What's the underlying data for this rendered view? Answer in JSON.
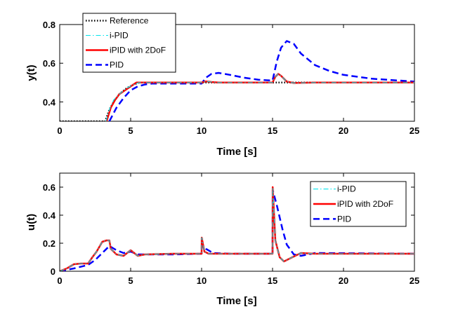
{
  "chart_data": [
    {
      "type": "line",
      "xlabel": "Time [s]",
      "ylabel": "y(t)",
      "xlim": [
        0,
        25
      ],
      "ylim": [
        0.3,
        0.8
      ],
      "xticks": [
        "0",
        "5",
        "10",
        "15",
        "20",
        "25"
      ],
      "yticks": [
        "0.4",
        "0.6",
        "0.8"
      ],
      "legend_position": "top-left",
      "series": [
        {
          "name": "Reference",
          "color": "#000000",
          "style": "dotted",
          "x": [
            0,
            3.2,
            3.5,
            3.8,
            4.2,
            4.7,
            5.2,
            5.6,
            6,
            8,
            10,
            12,
            15,
            15.3,
            15.6,
            16,
            16.5,
            18,
            20,
            25
          ],
          "y": [
            0.3,
            0.3,
            0.36,
            0.4,
            0.44,
            0.47,
            0.49,
            0.5,
            0.5,
            0.5,
            0.5,
            0.5,
            0.5,
            0.5,
            0.5,
            0.5,
            0.5,
            0.5,
            0.5,
            0.5
          ]
        },
        {
          "name": "i-PID",
          "color": "#00e5ee",
          "style": "dashdot",
          "x": [
            3.25,
            3.5,
            3.8,
            4.2,
            4.7,
            5.2,
            5.6,
            6,
            8,
            10,
            10.3,
            10.7,
            11.2,
            12,
            15,
            15.2,
            15.4,
            15.6,
            16,
            16.5,
            18,
            25
          ],
          "y": [
            0.3,
            0.36,
            0.41,
            0.44,
            0.47,
            0.49,
            0.5,
            0.5,
            0.5,
            0.5,
            0.506,
            0.503,
            0.5,
            0.5,
            0.5,
            0.53,
            0.545,
            0.535,
            0.505,
            0.498,
            0.5,
            0.5
          ]
        },
        {
          "name": "iPID with 2DoF",
          "color": "#ff0000",
          "style": "solid",
          "x": [
            3.3,
            3.6,
            3.9,
            4.2,
            4.6,
            5,
            5.4,
            5.8,
            6.5,
            8,
            10,
            10.3,
            10.7,
            11.2,
            12,
            15,
            15.2,
            15.4,
            15.6,
            16,
            16.5,
            18,
            25
          ],
          "y": [
            0.3,
            0.37,
            0.41,
            0.44,
            0.46,
            0.48,
            0.5,
            0.5,
            0.5,
            0.5,
            0.5,
            0.506,
            0.503,
            0.5,
            0.5,
            0.5,
            0.53,
            0.545,
            0.535,
            0.505,
            0.498,
            0.5,
            0.5
          ]
        },
        {
          "name": "PID",
          "color": "#0000ff",
          "style": "dashed",
          "x": [
            3.5,
            4,
            4.5,
            5,
            5.5,
            6,
            6.5,
            8,
            10,
            10.3,
            10.7,
            11.2,
            12,
            13,
            14,
            15,
            15.3,
            15.6,
            16,
            16.5,
            17,
            18,
            19,
            20,
            22,
            25
          ],
          "y": [
            0.3,
            0.37,
            0.42,
            0.46,
            0.48,
            0.49,
            0.495,
            0.495,
            0.495,
            0.525,
            0.545,
            0.55,
            0.54,
            0.525,
            0.515,
            0.51,
            0.61,
            0.68,
            0.715,
            0.7,
            0.65,
            0.59,
            0.56,
            0.54,
            0.52,
            0.505
          ]
        }
      ]
    },
    {
      "type": "line",
      "xlabel": "Time [s]",
      "ylabel": "u(t)",
      "xlim": [
        0,
        25
      ],
      "ylim": [
        0,
        0.7
      ],
      "xticks": [
        "0",
        "5",
        "10",
        "15",
        "20",
        "25"
      ],
      "yticks": [
        "0",
        "0.2",
        "0.4",
        "0.6"
      ],
      "legend_position": "top-right",
      "series": [
        {
          "name": "i-PID",
          "color": "#00e5ee",
          "style": "dashdot",
          "x": [
            0,
            0.5,
            1,
            1.5,
            2,
            2.3,
            2.6,
            3,
            3.3,
            3.5,
            3.6,
            4,
            4.5,
            5,
            5.5,
            6,
            8,
            10,
            10.01,
            10.2,
            10.5,
            12,
            15,
            15.01,
            15.2,
            15.5,
            15.8,
            16.2,
            17,
            18,
            25
          ],
          "y": [
            0,
            0.02,
            0.05,
            0.055,
            0.055,
            0.1,
            0.14,
            0.21,
            0.22,
            0.22,
            0.16,
            0.12,
            0.11,
            0.15,
            0.11,
            0.12,
            0.125,
            0.125,
            0.24,
            0.14,
            0.125,
            0.125,
            0.125,
            0.6,
            0.22,
            0.1,
            0.07,
            0.09,
            0.13,
            0.125,
            0.125
          ]
        },
        {
          "name": "iPID with 2DoF",
          "color": "#ff0000",
          "style": "solid",
          "x": [
            0,
            0.5,
            1,
            1.5,
            2,
            2.3,
            2.6,
            3,
            3.3,
            3.5,
            3.6,
            4,
            4.5,
            5,
            5.5,
            6,
            8,
            10,
            10.01,
            10.2,
            10.5,
            12,
            15,
            15.01,
            15.2,
            15.5,
            15.8,
            16.2,
            17,
            18,
            25
          ],
          "y": [
            0,
            0.02,
            0.05,
            0.055,
            0.055,
            0.1,
            0.14,
            0.21,
            0.22,
            0.22,
            0.16,
            0.12,
            0.11,
            0.15,
            0.11,
            0.12,
            0.125,
            0.125,
            0.24,
            0.14,
            0.125,
            0.125,
            0.125,
            0.6,
            0.22,
            0.1,
            0.07,
            0.09,
            0.13,
            0.125,
            0.125
          ]
        },
        {
          "name": "PID",
          "color": "#0000ff",
          "style": "dashed",
          "x": [
            0,
            1,
            2,
            2.5,
            3,
            3.5,
            4,
            4.5,
            5,
            5.5,
            6,
            8,
            10,
            10.01,
            10.3,
            10.8,
            12,
            15,
            15.01,
            15.3,
            15.7,
            16,
            16.5,
            17,
            18,
            25
          ],
          "y": [
            0,
            0.02,
            0.045,
            0.08,
            0.13,
            0.18,
            0.15,
            0.13,
            0.14,
            0.12,
            0.12,
            0.12,
            0.125,
            0.19,
            0.16,
            0.13,
            0.125,
            0.125,
            0.58,
            0.47,
            0.3,
            0.19,
            0.12,
            0.11,
            0.13,
            0.125
          ]
        }
      ]
    }
  ]
}
